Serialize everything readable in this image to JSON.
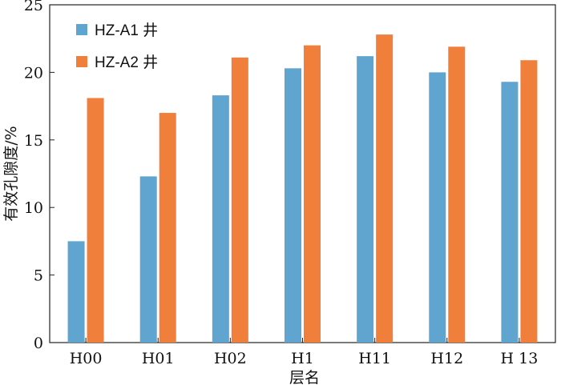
{
  "chart_data": {
    "type": "bar",
    "categories": [
      "H00",
      "H01",
      "H02",
      "H1",
      "H11",
      "H12",
      "H 13"
    ],
    "series": [
      {
        "name": "HZ-A1 井",
        "values": [
          7.5,
          12.3,
          18.3,
          20.3,
          21.2,
          20.0,
          19.3
        ],
        "color": "#5fa5cf"
      },
      {
        "name": "HZ-A2 井",
        "values": [
          18.1,
          17.0,
          21.1,
          22.0,
          22.8,
          21.9,
          20.9
        ],
        "color": "#f07f3c"
      }
    ],
    "xlabel": "层名",
    "ylabel": "有效孔隙度/%",
    "ylim": [
      0,
      25
    ],
    "yticks": [
      "0",
      "5",
      "10",
      "15",
      "20",
      "25"
    ],
    "grid": false,
    "legend_position": "top-left"
  }
}
